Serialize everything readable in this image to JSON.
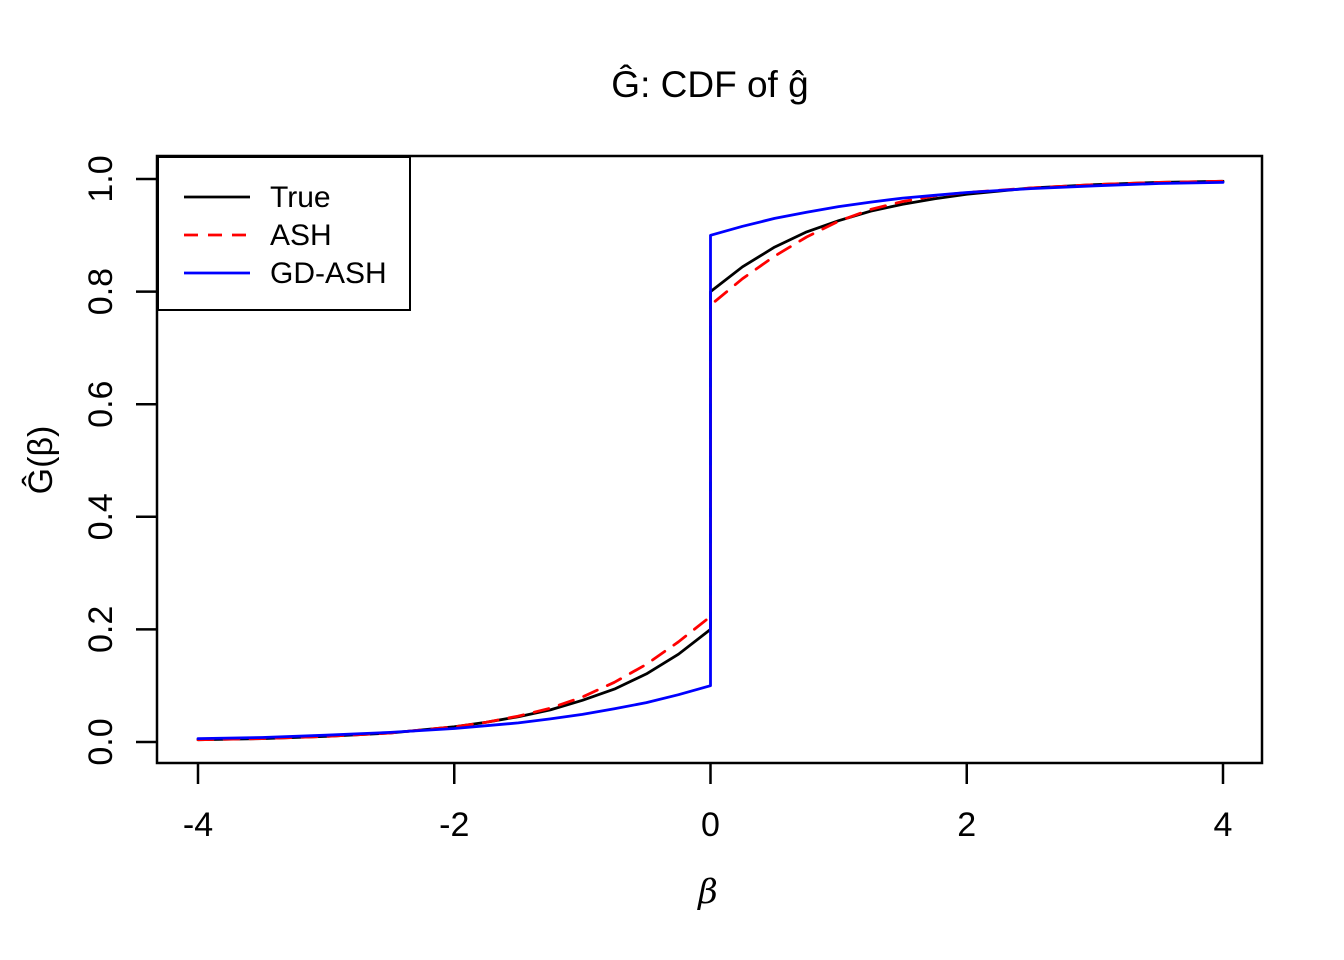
{
  "figure": {
    "title": "Ĝ: CDF of ĝ"
  },
  "chart_data": {
    "type": "line",
    "title": "Ĝ: CDF of ĝ",
    "xlabel": "β",
    "ylabel": "Ĝ(β)",
    "xlim": [
      -4,
      4
    ],
    "ylim": [
      0,
      1
    ],
    "grid": false,
    "x_ticks": [
      -4,
      -2,
      0,
      2,
      4
    ],
    "x_tick_labels": [
      "-4",
      "-2",
      "0",
      "2",
      "4"
    ],
    "y_ticks": [
      0,
      0.2,
      0.4,
      0.6,
      0.8,
      1
    ],
    "y_tick_labels": [
      "0.0",
      "0.2",
      "0.4",
      "0.6",
      "0.8",
      "1.0"
    ],
    "legend": {
      "position": "topleft",
      "entries": [
        {
          "label": "True",
          "color": "#000000",
          "line_style": "solid"
        },
        {
          "label": "ASH",
          "color": "#FF0000",
          "line_style": "dashed"
        },
        {
          "label": "GD-ASH",
          "color": "#0000FF",
          "line_style": "solid"
        }
      ]
    },
    "jump_at_zero": {
      "True": [
        0.2,
        0.8
      ],
      "ASH": [
        0.223,
        0.776
      ],
      "GD-ASH": [
        0.1,
        0.9
      ]
    },
    "x": [
      -4,
      -3.5,
      -3,
      -2.5,
      -2,
      -1.75,
      -1.5,
      -1.25,
      -1,
      -0.75,
      -0.5,
      -0.25,
      0,
      0,
      0.25,
      0.5,
      0.75,
      1,
      1.25,
      1.5,
      1.75,
      2,
      2.5,
      3,
      3.5,
      4
    ],
    "series": [
      {
        "name": "True",
        "color": "#000000",
        "line_style": "solid",
        "y": [
          0.004,
          0.006,
          0.01,
          0.016,
          0.027,
          0.035,
          0.045,
          0.057,
          0.074,
          0.094,
          0.121,
          0.156,
          0.2,
          0.8,
          0.844,
          0.879,
          0.906,
          0.926,
          0.943,
          0.955,
          0.965,
          0.973,
          0.984,
          0.99,
          0.994,
          0.996
        ]
      },
      {
        "name": "ASH",
        "color": "#FF0000",
        "line_style": "dashed",
        "y": [
          0.004,
          0.006,
          0.01,
          0.016,
          0.027,
          0.035,
          0.046,
          0.06,
          0.08,
          0.106,
          0.138,
          0.178,
          0.223,
          0.776,
          0.823,
          0.863,
          0.897,
          0.925,
          0.946,
          0.96,
          0.97,
          0.976,
          0.984,
          0.99,
          0.994,
          0.996
        ]
      },
      {
        "name": "GD-ASH",
        "color": "#0000FF",
        "line_style": "solid",
        "y": [
          0.006,
          0.008,
          0.012,
          0.017,
          0.024,
          0.029,
          0.034,
          0.041,
          0.049,
          0.059,
          0.07,
          0.084,
          0.1,
          0.9,
          0.916,
          0.93,
          0.941,
          0.951,
          0.959,
          0.966,
          0.971,
          0.976,
          0.983,
          0.988,
          0.992,
          0.994
        ]
      }
    ]
  }
}
